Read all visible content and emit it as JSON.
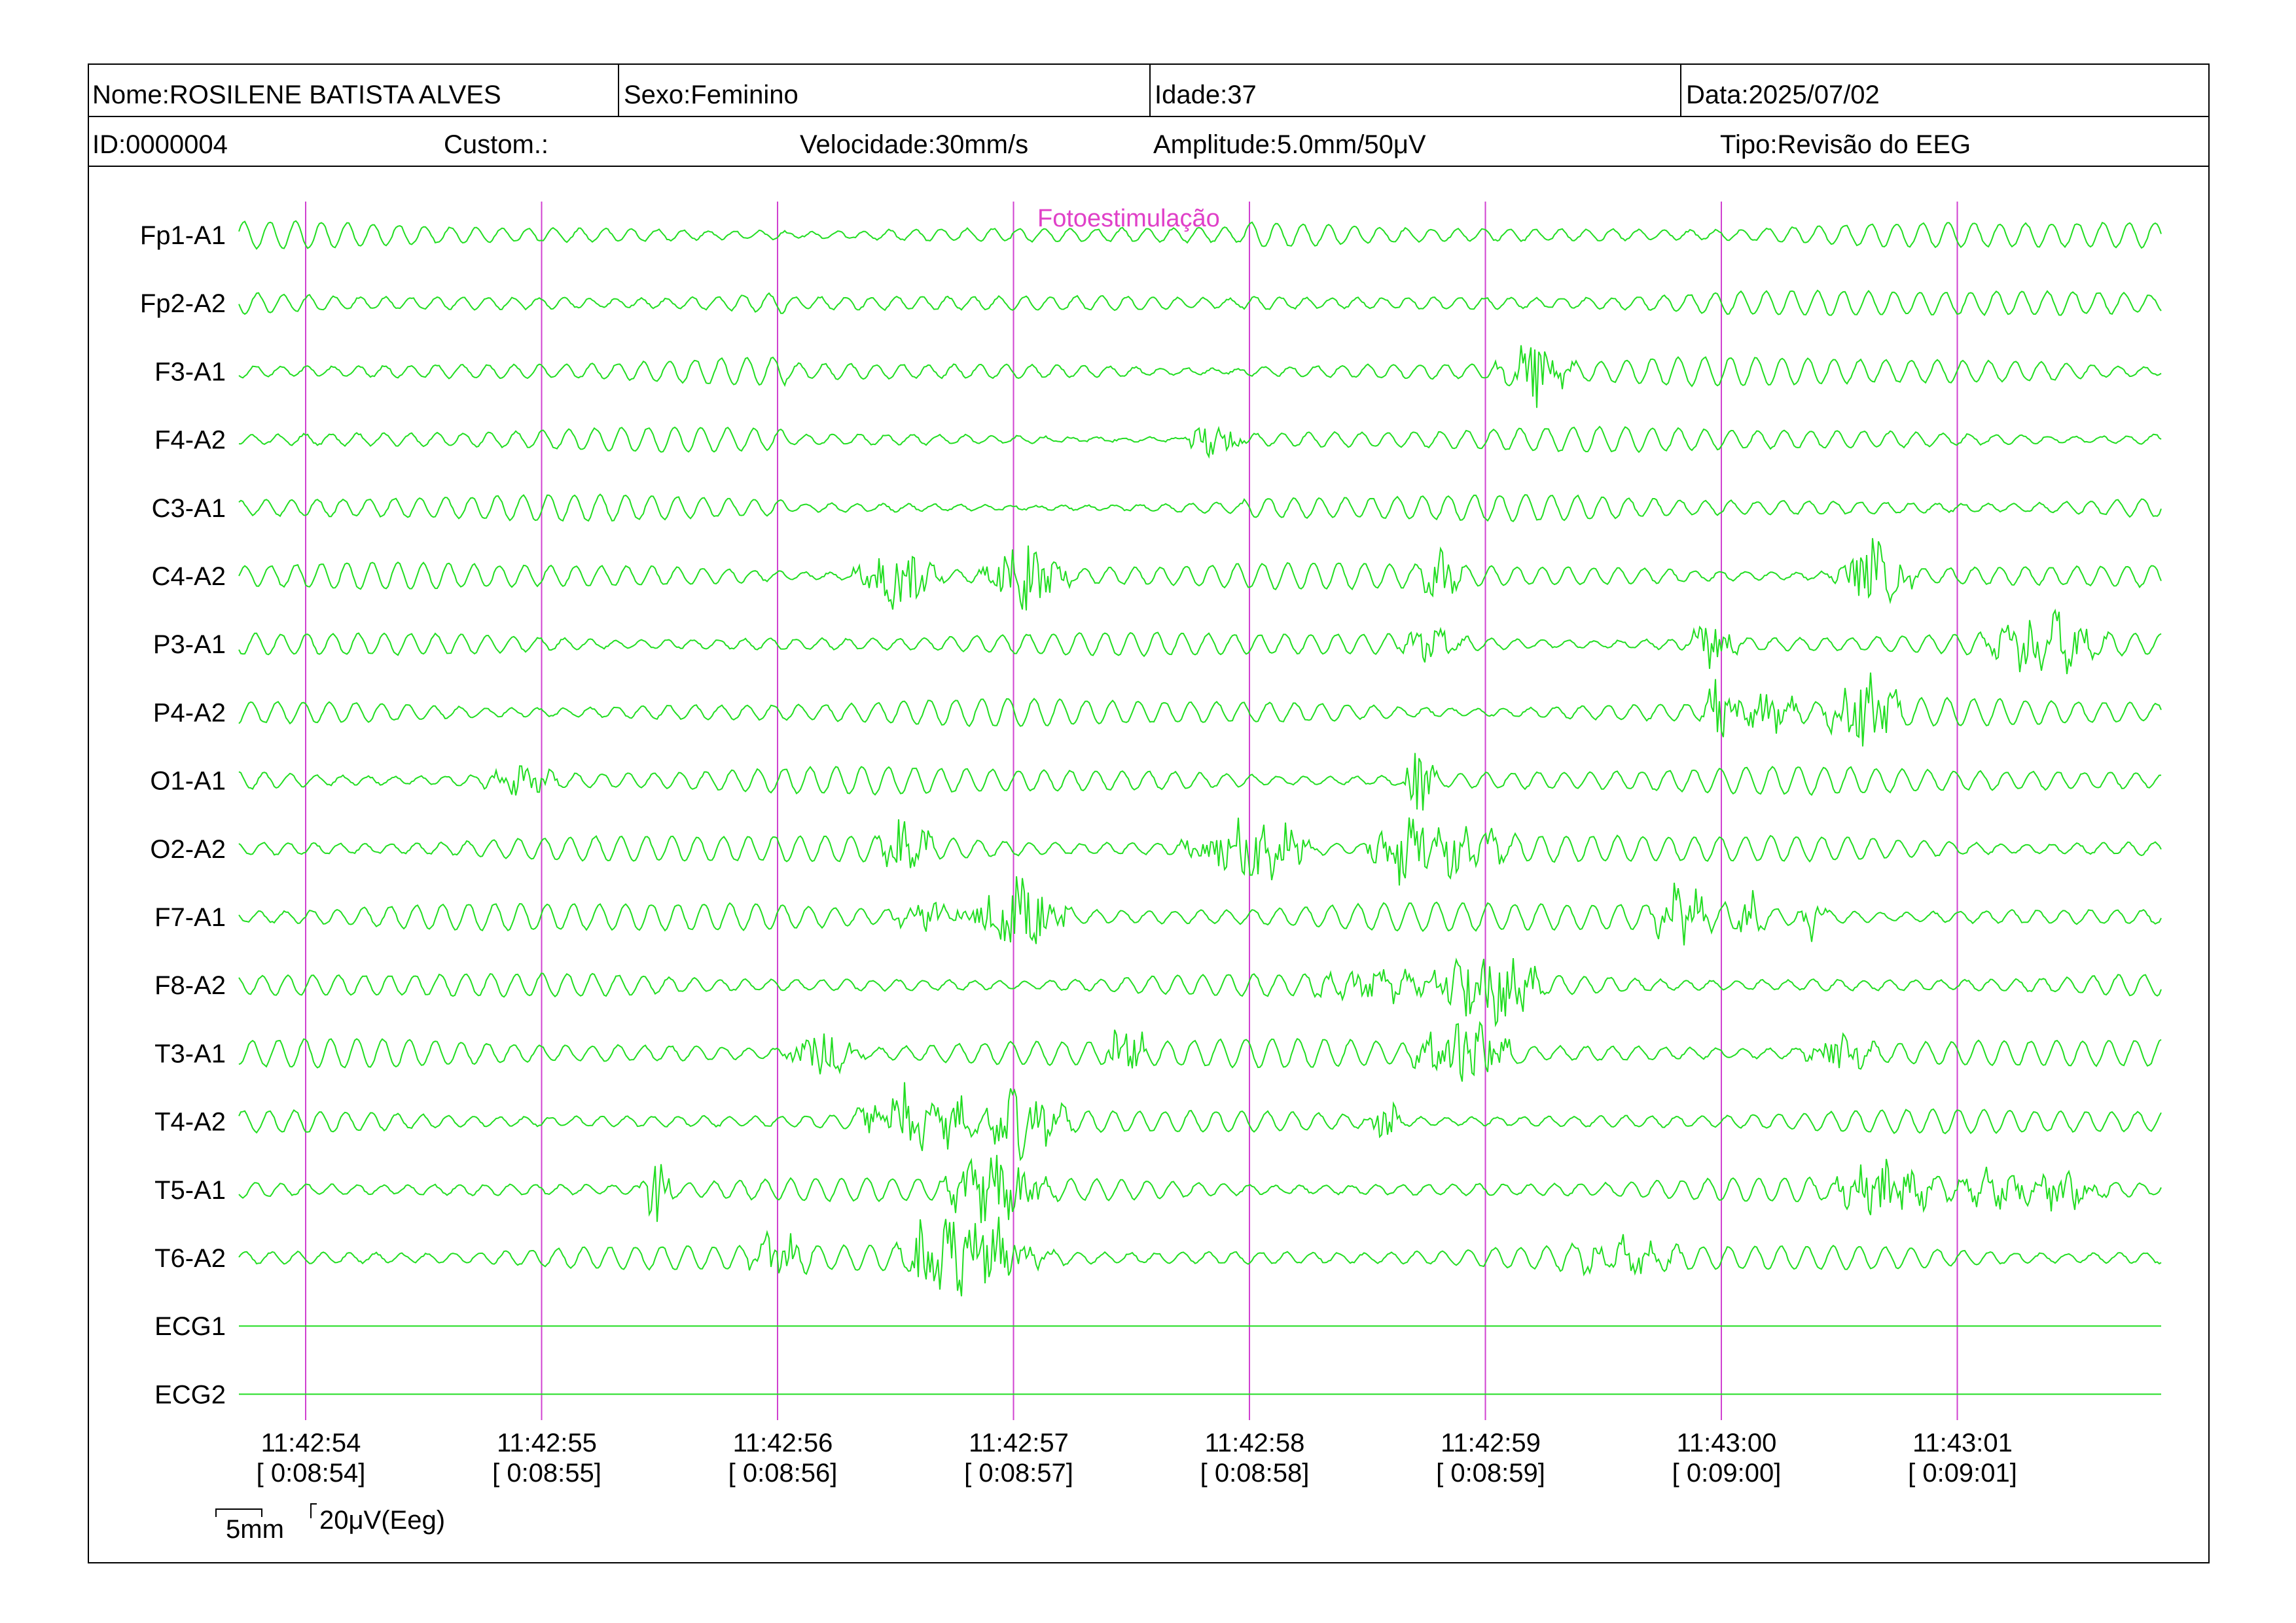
{
  "header": {
    "row1": {
      "name": "Nome:ROSILENE BATISTA ALVES",
      "sex": "Sexo:Feminino",
      "age": "Idade:37",
      "date": "Data:2025/07/02"
    },
    "row2": {
      "id": "ID:0000004",
      "custom": "Custom.:",
      "speed": "Velocidade:30mm/s",
      "amplitude": "Amplitude:5.0mm/50μV",
      "type": "Tipo:Revisão do EEG"
    }
  },
  "marker": {
    "label": "Fotoestimulação",
    "color": "#e040c8"
  },
  "colors": {
    "trace": "#22dd22",
    "time_line": "#d040d0",
    "border": "#000000"
  },
  "scale": {
    "mm_label": "5mm",
    "uv_label": "20μV(Eeg)"
  },
  "chart_data": {
    "type": "line",
    "title": "",
    "xlabel": "",
    "ylabel": "",
    "x_ticks": [
      {
        "time": "11:42:54",
        "elapsed": "[ 0:08:54]"
      },
      {
        "time": "11:42:55",
        "elapsed": "[ 0:08:55]"
      },
      {
        "time": "11:42:56",
        "elapsed": "[ 0:08:56]"
      },
      {
        "time": "11:42:57",
        "elapsed": "[ 0:08:57]"
      },
      {
        "time": "11:42:58",
        "elapsed": "[ 0:08:58]"
      },
      {
        "time": "11:42:59",
        "elapsed": "[ 0:08:59]"
      },
      {
        "time": "11:43:00",
        "elapsed": "[ 0:09:00]"
      },
      {
        "time": "11:43:01",
        "elapsed": "[ 0:09:01]"
      }
    ],
    "channels": [
      {
        "name": "Fp1-A1",
        "waveform": "oscillatory"
      },
      {
        "name": "Fp2-A2",
        "waveform": "oscillatory"
      },
      {
        "name": "F3-A1",
        "waveform": "oscillatory"
      },
      {
        "name": "F4-A2",
        "waveform": "oscillatory"
      },
      {
        "name": "C3-A1",
        "waveform": "oscillatory"
      },
      {
        "name": "C4-A2",
        "waveform": "oscillatory"
      },
      {
        "name": "P3-A1",
        "waveform": "oscillatory"
      },
      {
        "name": "P4-A2",
        "waveform": "oscillatory"
      },
      {
        "name": "O1-A1",
        "waveform": "oscillatory"
      },
      {
        "name": "O2-A2",
        "waveform": "oscillatory"
      },
      {
        "name": "F7-A1",
        "waveform": "oscillatory"
      },
      {
        "name": "F8-A2",
        "waveform": "oscillatory"
      },
      {
        "name": "T3-A1",
        "waveform": "oscillatory"
      },
      {
        "name": "T4-A2",
        "waveform": "oscillatory"
      },
      {
        "name": "T5-A1",
        "waveform": "oscillatory"
      },
      {
        "name": "T6-A2",
        "waveform": "oscillatory"
      },
      {
        "name": "ECG1",
        "waveform": "flat"
      },
      {
        "name": "ECG2",
        "waveform": "flat"
      }
    ],
    "marker_time": "11:42:57"
  }
}
